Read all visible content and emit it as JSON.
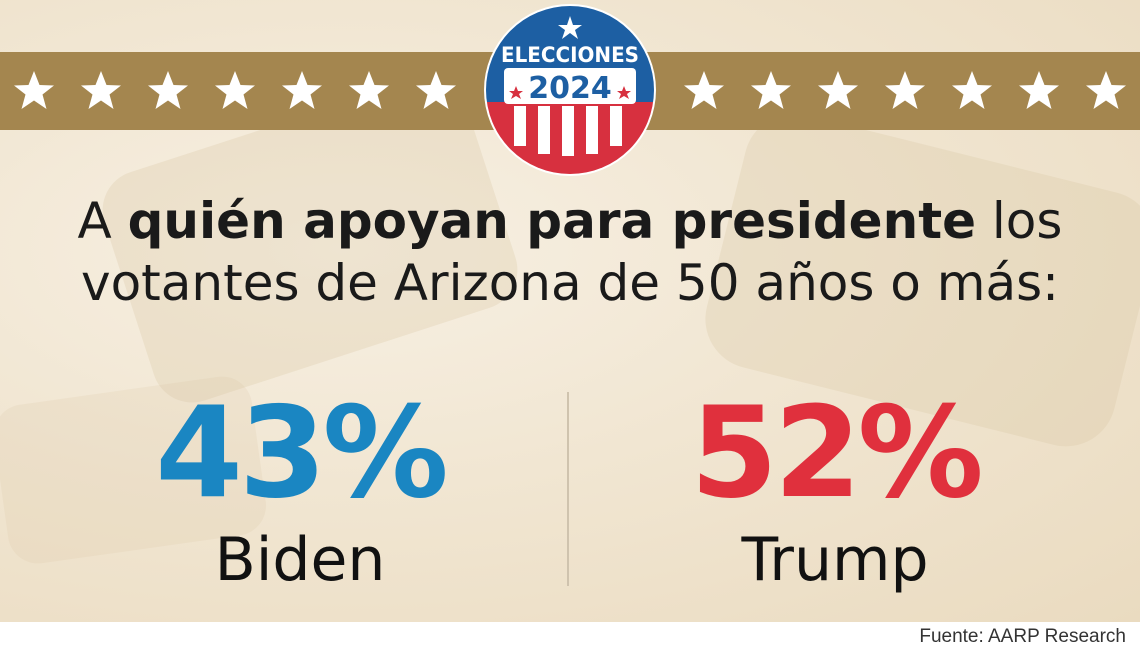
{
  "header": {
    "badge_line1": "ELECCIONES",
    "badge_line2": "2024",
    "star_icon": "star-icon",
    "colors": {
      "band": "#a4864f",
      "badge_blue": "#1d5fa3",
      "badge_red": "#d7303f"
    }
  },
  "headline": {
    "part1": "A ",
    "part2_bold": "quién apoyan para presidente",
    "part3": " los",
    "line2": "votantes de Arizona de 50 años o más:"
  },
  "results": [
    {
      "percent": "43%",
      "candidate": "Biden",
      "color": "#1a86c2"
    },
    {
      "percent": "52%",
      "candidate": "Trump",
      "color": "#e0303d"
    }
  ],
  "footer": {
    "source": "Fuente: AARP Research"
  }
}
